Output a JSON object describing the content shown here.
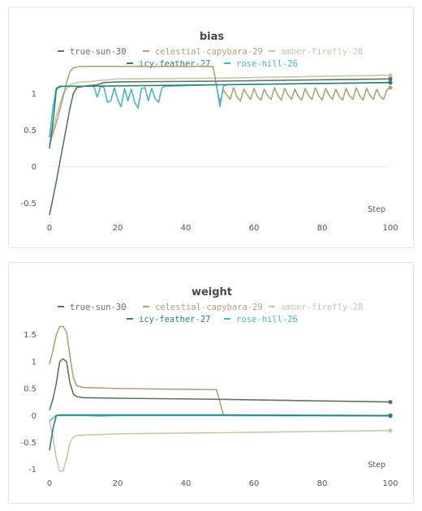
{
  "colors": {
    "true-sun-30": "#5f735f",
    "celestial-capybara-29": "#a8a57a",
    "amber-firefly-28": "#c7c6ab",
    "icy-feather-27": "#2f7f7f",
    "rose-hill-26": "#4fb0c6"
  },
  "chart_data": [
    {
      "type": "line",
      "title": "bias",
      "xlabel": "Step",
      "ylabel": "",
      "xlim": [
        0,
        100
      ],
      "ylim": [
        -0.68,
        1.38
      ],
      "xticks": [
        0,
        20,
        40,
        60,
        80,
        100
      ],
      "yticks": [
        -0.5,
        0,
        0.5,
        1
      ],
      "ytick_labels": [
        "-0.5",
        "0",
        "0.5",
        "1"
      ],
      "xtick_labels": [
        "0",
        "20",
        "40",
        "60",
        "80",
        "100"
      ],
      "legend": [
        "true-sun-30",
        "celestial-capybara-29",
        "amber-firefly-28",
        "icy-feather-27",
        "rose-hill-26"
      ],
      "grid": true,
      "series": [
        {
          "name": "true-sun-30",
          "points": [
            [
              0,
              -0.66
            ],
            [
              2,
              -0.2
            ],
            [
              4,
              0.3
            ],
            [
              6,
              0.8
            ],
            [
              7,
              1.0
            ],
            [
              8,
              1.08
            ],
            [
              10,
              1.1
            ],
            [
              14,
              1.12
            ],
            [
              16,
              1.15
            ],
            [
              20,
              1.16
            ],
            [
              50,
              1.17
            ],
            [
              100,
              1.2
            ]
          ]
        },
        {
          "name": "celestial-capybara-29",
          "points": [
            [
              0,
              0.3
            ],
            [
              2,
              0.6
            ],
            [
              4,
              0.95
            ],
            [
              5,
              1.15
            ],
            [
              6,
              1.3
            ],
            [
              7,
              1.35
            ],
            [
              9,
              1.37
            ],
            [
              48,
              1.37
            ],
            [
              49,
              1.1
            ],
            [
              50,
              0.88
            ],
            [
              51,
              1.05
            ],
            [
              52,
              0.98
            ],
            [
              53,
              0.92
            ],
            [
              54,
              1.08
            ],
            [
              55,
              0.95
            ],
            [
              56,
              0.9
            ],
            [
              57,
              1.06
            ],
            [
              58,
              0.98
            ],
            [
              59,
              0.92
            ],
            [
              60,
              1.07
            ],
            [
              61,
              0.96
            ],
            [
              62,
              0.91
            ],
            [
              63,
              1.06
            ],
            [
              64,
              0.97
            ],
            [
              65,
              0.92
            ],
            [
              66,
              1.08
            ],
            [
              67,
              0.97
            ],
            [
              68,
              0.91
            ],
            [
              69,
              1.07
            ],
            [
              70,
              0.98
            ],
            [
              71,
              0.92
            ],
            [
              72,
              1.06
            ],
            [
              73,
              0.96
            ],
            [
              74,
              0.91
            ],
            [
              75,
              1.07
            ],
            [
              76,
              0.97
            ],
            [
              77,
              0.92
            ],
            [
              78,
              1.08
            ],
            [
              79,
              0.97
            ],
            [
              80,
              0.91
            ],
            [
              81,
              1.07
            ],
            [
              82,
              0.98
            ],
            [
              83,
              0.92
            ],
            [
              84,
              1.06
            ],
            [
              85,
              0.96
            ],
            [
              86,
              0.91
            ],
            [
              87,
              1.07
            ],
            [
              88,
              0.97
            ],
            [
              89,
              0.92
            ],
            [
              90,
              1.08
            ],
            [
              91,
              0.97
            ],
            [
              92,
              0.91
            ],
            [
              93,
              1.07
            ],
            [
              94,
              0.98
            ],
            [
              95,
              0.92
            ],
            [
              96,
              1.06
            ],
            [
              97,
              0.96
            ],
            [
              98,
              0.92
            ],
            [
              99,
              1.05
            ],
            [
              100,
              1.08
            ]
          ]
        },
        {
          "name": "amber-firefly-28",
          "points": [
            [
              0,
              0.3
            ],
            [
              2,
              0.7
            ],
            [
              4,
              1.0
            ],
            [
              6,
              1.12
            ],
            [
              8,
              1.15
            ],
            [
              20,
              1.2
            ],
            [
              50,
              1.21
            ],
            [
              100,
              1.25
            ]
          ]
        },
        {
          "name": "icy-feather-27",
          "points": [
            [
              0,
              0.25
            ],
            [
              1,
              0.6
            ],
            [
              2,
              1.05
            ],
            [
              3,
              1.1
            ],
            [
              10,
              1.1
            ],
            [
              50,
              1.12
            ],
            [
              100,
              1.15
            ]
          ]
        },
        {
          "name": "rose-hill-26",
          "points": [
            [
              0,
              0.4
            ],
            [
              1,
              0.8
            ],
            [
              2,
              1.08
            ],
            [
              4,
              1.1
            ],
            [
              13,
              1.1
            ],
            [
              14,
              0.95
            ],
            [
              15,
              1.1
            ],
            [
              16,
              1.08
            ],
            [
              17,
              0.88
            ],
            [
              18,
              0.9
            ],
            [
              19,
              1.08
            ],
            [
              20,
              0.92
            ],
            [
              21,
              0.82
            ],
            [
              22,
              1.07
            ],
            [
              23,
              0.9
            ],
            [
              24,
              1.06
            ],
            [
              25,
              0.88
            ],
            [
              26,
              0.8
            ],
            [
              27,
              1.07
            ],
            [
              28,
              1.08
            ],
            [
              29,
              0.9
            ],
            [
              30,
              1.07
            ],
            [
              31,
              0.93
            ],
            [
              32,
              0.88
            ],
            [
              33,
              1.08
            ],
            [
              34,
              1.1
            ],
            [
              48,
              1.12
            ],
            [
              49,
              1.12
            ],
            [
              50,
              0.82
            ],
            [
              51,
              1.1
            ],
            [
              52,
              1.12
            ],
            [
              100,
              1.15
            ]
          ]
        }
      ]
    },
    {
      "type": "line",
      "title": "weight",
      "xlabel": "Step",
      "ylabel": "",
      "xlim": [
        0,
        100
      ],
      "ylim": [
        -1.05,
        1.75
      ],
      "xticks": [
        0,
        20,
        40,
        60,
        80,
        100
      ],
      "yticks": [
        -1,
        -0.5,
        0,
        0.5,
        1,
        1.5
      ],
      "ytick_labels": [
        "-1",
        "-0.5",
        "0",
        "0.5",
        "1",
        "1.5"
      ],
      "xtick_labels": [
        "0",
        "20",
        "40",
        "60",
        "80",
        "100"
      ],
      "legend": [
        "true-sun-30",
        "celestial-capybara-29",
        "amber-firefly-28",
        "icy-feather-27",
        "rose-hill-26"
      ],
      "grid": true,
      "series": [
        {
          "name": "true-sun-30",
          "points": [
            [
              0,
              0.1
            ],
            [
              1,
              0.3
            ],
            [
              2,
              0.6
            ],
            [
              3,
              1.0
            ],
            [
              4,
              1.05
            ],
            [
              5,
              1.0
            ],
            [
              6,
              0.6
            ],
            [
              7,
              0.4
            ],
            [
              8,
              0.35
            ],
            [
              10,
              0.33
            ],
            [
              20,
              0.32
            ],
            [
              50,
              0.3
            ],
            [
              100,
              0.25
            ]
          ]
        },
        {
          "name": "celestial-capybara-29",
          "points": [
            [
              0,
              0.95
            ],
            [
              1,
              1.2
            ],
            [
              2,
              1.5
            ],
            [
              3,
              1.65
            ],
            [
              4,
              1.65
            ],
            [
              5,
              1.55
            ],
            [
              6,
              1.1
            ],
            [
              7,
              0.7
            ],
            [
              8,
              0.55
            ],
            [
              10,
              0.52
            ],
            [
              20,
              0.5
            ],
            [
              49,
              0.48
            ],
            [
              50,
              0.25
            ],
            [
              51,
              0.01
            ],
            [
              52,
              0.0
            ],
            [
              100,
              0.0
            ]
          ]
        },
        {
          "name": "amber-firefly-28",
          "points": [
            [
              0,
              -0.1
            ],
            [
              1,
              -0.4
            ],
            [
              2,
              -0.8
            ],
            [
              3,
              -1.03
            ],
            [
              4,
              -1.03
            ],
            [
              5,
              -0.8
            ],
            [
              6,
              -0.5
            ],
            [
              7,
              -0.4
            ],
            [
              8,
              -0.37
            ],
            [
              20,
              -0.34
            ],
            [
              50,
              -0.32
            ],
            [
              100,
              -0.28
            ]
          ]
        },
        {
          "name": "icy-feather-27",
          "points": [
            [
              0,
              -0.65
            ],
            [
              1,
              -0.25
            ],
            [
              2,
              0.0
            ],
            [
              3,
              0.01
            ],
            [
              50,
              0.01
            ],
            [
              100,
              0.0
            ]
          ]
        },
        {
          "name": "rose-hill-26",
          "points": [
            [
              0,
              -0.1
            ],
            [
              1,
              -0.05
            ],
            [
              2,
              0.0
            ],
            [
              10,
              0.0
            ],
            [
              15,
              -0.01
            ],
            [
              20,
              0.0
            ],
            [
              50,
              0.0
            ],
            [
              100,
              -0.01
            ]
          ]
        }
      ]
    }
  ]
}
